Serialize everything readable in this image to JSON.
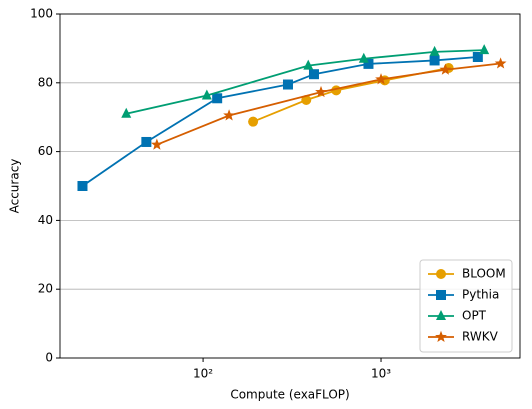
{
  "chart_data": {
    "type": "line",
    "x_label": "Compute (exaFLOP)",
    "y_label": "Accuracy",
    "xscale": "log",
    "xlim": [
      15.7,
      6040
    ],
    "xticks": [
      {
        "value": 100,
        "label": "10²"
      },
      {
        "value": 1000,
        "label": "10³"
      }
    ],
    "ylim": [
      0,
      100
    ],
    "yticks": [
      0,
      20,
      40,
      60,
      80,
      100
    ],
    "grid": "y",
    "legend": "lower right",
    "series": [
      {
        "name": "BLOOM",
        "color": "#e69f00",
        "marker": "circle",
        "x": [
          191,
          380,
          560,
          1050,
          2400
        ],
        "values": [
          68.7,
          75,
          77.8,
          80.7,
          84.3
        ]
      },
      {
        "name": "Pythia",
        "color": "#0072b2",
        "marker": "square",
        "x": [
          21,
          48,
          120,
          300,
          420,
          850,
          2000,
          3500
        ],
        "values": [
          50,
          62.8,
          75.5,
          79.5,
          82.5,
          85.5,
          86.5,
          87.5
        ]
      },
      {
        "name": "OPT",
        "color": "#009e73",
        "marker": "triangle",
        "x": [
          37,
          105,
          390,
          800,
          2000,
          3800
        ],
        "values": [
          71,
          76.3,
          85,
          87,
          89,
          89.5
        ]
      },
      {
        "name": "RWKV",
        "color": "#d55e00",
        "marker": "star",
        "x": [
          55,
          140,
          460,
          1000,
          2300,
          4700
        ],
        "values": [
          62,
          70.5,
          77.3,
          81,
          83.8,
          85.6
        ]
      }
    ]
  }
}
